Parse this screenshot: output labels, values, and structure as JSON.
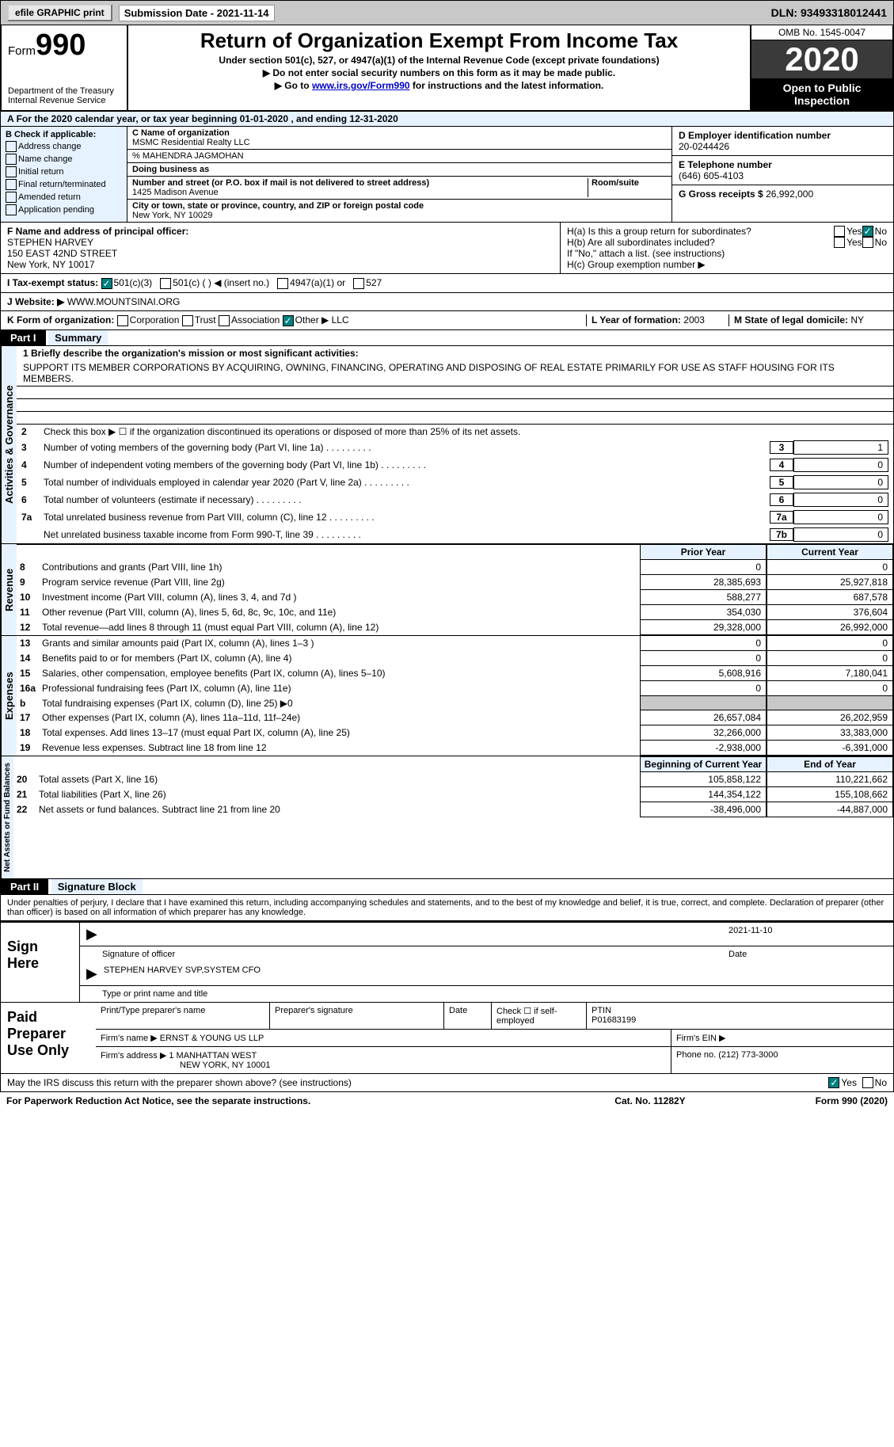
{
  "topbar": {
    "efile": "efile GRAPHIC print",
    "sub_label": "Submission Date - ",
    "sub_date": "2021-11-14",
    "dln": "DLN: 93493318012441"
  },
  "header": {
    "form": "Form",
    "form_num": "990",
    "dept": "Department of the Treasury Internal Revenue Service",
    "title": "Return of Organization Exempt From Income Tax",
    "sub1": "Under section 501(c), 527, or 4947(a)(1) of the Internal Revenue Code (except private foundations)",
    "sub2": "▶ Do not enter social security numbers on this form as it may be made public.",
    "sub3_pre": "▶ Go to ",
    "sub3_link": "www.irs.gov/Form990",
    "sub3_post": " for instructions and the latest information.",
    "omb": "OMB No. 1545-0047",
    "year": "2020",
    "open": "Open to Public Inspection"
  },
  "period": "For the 2020 calendar year, or tax year beginning 01-01-2020   , and ending 12-31-2020",
  "box_b": {
    "title": "B Check if applicable:",
    "items": [
      "Address change",
      "Name change",
      "Initial return",
      "Final return/terminated",
      "Amended return",
      "Application pending"
    ]
  },
  "box_c": {
    "name_lbl": "C Name of organization",
    "name": "MSMC Residential Realty LLC",
    "care": "% MAHENDRA JAGMOHAN",
    "dba_lbl": "Doing business as",
    "addr_lbl": "Number and street (or P.O. box if mail is not delivered to street address)",
    "room_lbl": "Room/suite",
    "addr": "1425 Madison Avenue",
    "city_lbl": "City or town, state or province, country, and ZIP or foreign postal code",
    "city": "New York, NY  10029"
  },
  "box_d": {
    "lbl": "D Employer identification number",
    "val": "20-0244426"
  },
  "box_e": {
    "lbl": "E Telephone number",
    "val": "(646) 605-4103"
  },
  "box_g": {
    "lbl": "G Gross receipts $",
    "val": "26,992,000"
  },
  "box_f": {
    "lbl": "F Name and address of principal officer:",
    "name": "STEPHEN HARVEY",
    "addr1": "150 EAST 42ND STREET",
    "addr2": "New York, NY  10017"
  },
  "box_h": {
    "ha": "H(a)  Is this a group return for subordinates?",
    "hb": "H(b)  Are all subordinates included?",
    "hb_note": "If \"No,\" attach a list. (see instructions)",
    "hc": "H(c)  Group exemption number ▶",
    "yes": "Yes",
    "no": "No"
  },
  "box_i": {
    "lbl": "I  Tax-exempt status:",
    "opts": [
      "501(c)(3)",
      "501(c) (  ) ◀ (insert no.)",
      "4947(a)(1) or",
      "527"
    ]
  },
  "box_j": {
    "lbl": "J  Website: ▶",
    "val": "WWW.MOUNTSINAI.ORG"
  },
  "box_k": {
    "lbl": "K Form of organization:",
    "opts": [
      "Corporation",
      "Trust",
      "Association",
      "Other ▶"
    ],
    "other": "LLC"
  },
  "box_l": {
    "lbl": "L Year of formation:",
    "val": "2003"
  },
  "box_m": {
    "lbl": "M State of legal domicile:",
    "val": "NY"
  },
  "part1": {
    "hdr": "Part I",
    "title": "Summary"
  },
  "mission": {
    "prompt": "1  Briefly describe the organization's mission or most significant activities:",
    "text": "SUPPORT ITS MEMBER CORPORATIONS BY ACQUIRING, OWNING, FINANCING, OPERATING AND DISPOSING OF REAL ESTATE PRIMARILY FOR USE AS STAFF HOUSING FOR ITS MEMBERS."
  },
  "gov_lines": [
    {
      "n": "2",
      "t": "Check this box ▶ ☐ if the organization discontinued its operations or disposed of more than 25% of its net assets."
    },
    {
      "n": "3",
      "t": "Number of voting members of the governing body (Part VI, line 1a)",
      "box": "3",
      "v": "1"
    },
    {
      "n": "4",
      "t": "Number of independent voting members of the governing body (Part VI, line 1b)",
      "box": "4",
      "v": "0"
    },
    {
      "n": "5",
      "t": "Total number of individuals employed in calendar year 2020 (Part V, line 2a)",
      "box": "5",
      "v": "0"
    },
    {
      "n": "6",
      "t": "Total number of volunteers (estimate if necessary)",
      "box": "6",
      "v": "0"
    },
    {
      "n": "7a",
      "t": "Total unrelated business revenue from Part VIII, column (C), line 12",
      "box": "7a",
      "v": "0"
    },
    {
      "n": "",
      "t": "Net unrelated business taxable income from Form 990-T, line 39",
      "box": "7b",
      "v": "0"
    }
  ],
  "rev_hdr": {
    "py": "Prior Year",
    "cy": "Current Year"
  },
  "sections": {
    "gov": "Activities & Governance",
    "rev": "Revenue",
    "exp": "Expenses",
    "net": "Net Assets or Fund Balances"
  },
  "rev_lines": [
    {
      "n": "8",
      "t": "Contributions and grants (Part VIII, line 1h)",
      "py": "0",
      "cy": "0"
    },
    {
      "n": "9",
      "t": "Program service revenue (Part VIII, line 2g)",
      "py": "28,385,693",
      "cy": "25,927,818"
    },
    {
      "n": "10",
      "t": "Investment income (Part VIII, column (A), lines 3, 4, and 7d )",
      "py": "588,277",
      "cy": "687,578"
    },
    {
      "n": "11",
      "t": "Other revenue (Part VIII, column (A), lines 5, 6d, 8c, 9c, 10c, and 11e)",
      "py": "354,030",
      "cy": "376,604"
    },
    {
      "n": "12",
      "t": "Total revenue—add lines 8 through 11 (must equal Part VIII, column (A), line 12)",
      "py": "29,328,000",
      "cy": "26,992,000"
    }
  ],
  "exp_lines": [
    {
      "n": "13",
      "t": "Grants and similar amounts paid (Part IX, column (A), lines 1–3 )",
      "py": "0",
      "cy": "0"
    },
    {
      "n": "14",
      "t": "Benefits paid to or for members (Part IX, column (A), line 4)",
      "py": "0",
      "cy": "0"
    },
    {
      "n": "15",
      "t": "Salaries, other compensation, employee benefits (Part IX, column (A), lines 5–10)",
      "py": "5,608,916",
      "cy": "7,180,041"
    },
    {
      "n": "16a",
      "t": "Professional fundraising fees (Part IX, column (A), line 11e)",
      "py": "0",
      "cy": "0"
    },
    {
      "n": "b",
      "t": "Total fundraising expenses (Part IX, column (D), line 25) ▶0",
      "py": "",
      "cy": "",
      "gray": true
    },
    {
      "n": "17",
      "t": "Other expenses (Part IX, column (A), lines 11a–11d, 11f–24e)",
      "py": "26,657,084",
      "cy": "26,202,959"
    },
    {
      "n": "18",
      "t": "Total expenses. Add lines 13–17 (must equal Part IX, column (A), line 25)",
      "py": "32,266,000",
      "cy": "33,383,000"
    },
    {
      "n": "19",
      "t": "Revenue less expenses. Subtract line 18 from line 12",
      "py": "-2,938,000",
      "cy": "-6,391,000"
    }
  ],
  "net_hdr": {
    "py": "Beginning of Current Year",
    "cy": "End of Year"
  },
  "net_lines": [
    {
      "n": "20",
      "t": "Total assets (Part X, line 16)",
      "py": "105,858,122",
      "cy": "110,221,662"
    },
    {
      "n": "21",
      "t": "Total liabilities (Part X, line 26)",
      "py": "144,354,122",
      "cy": "155,108,662"
    },
    {
      "n": "22",
      "t": "Net assets or fund balances. Subtract line 21 from line 20",
      "py": "-38,496,000",
      "cy": "-44,887,000"
    }
  ],
  "part2": {
    "hdr": "Part II",
    "title": "Signature Block"
  },
  "sig_decl": "Under penalties of perjury, I declare that I have examined this return, including accompanying schedules and statements, and to the best of my knowledge and belief, it is true, correct, and complete. Declaration of preparer (other than officer) is based on all information of which preparer has any knowledge.",
  "sig": {
    "here": "Sign Here",
    "date": "2021-11-10",
    "sig_lbl": "Signature of officer",
    "date_lbl": "Date",
    "name": "STEPHEN HARVEY SVP,SYSTEM CFO",
    "name_lbl": "Type or print name and title"
  },
  "prep": {
    "title": "Paid Preparer Use Only",
    "h1": "Print/Type preparer's name",
    "h2": "Preparer's signature",
    "h3": "Date",
    "h4": "Check ☐ if self-employed",
    "h5": "PTIN",
    "ptin": "P01683199",
    "firm_lbl": "Firm's name   ▶",
    "firm": "ERNST & YOUNG US LLP",
    "ein_lbl": "Firm's EIN ▶",
    "addr_lbl": "Firm's address ▶",
    "addr1": "1 MANHATTAN WEST",
    "addr2": "NEW YORK, NY  10001",
    "phone_lbl": "Phone no.",
    "phone": "(212) 773-3000"
  },
  "footer": {
    "discuss": "May the IRS discuss this return with the preparer shown above? (see instructions)",
    "yes": "Yes",
    "no": "No",
    "pra": "For Paperwork Reduction Act Notice, see the separate instructions.",
    "cat": "Cat. No. 11282Y",
    "form": "Form 990 (2020)"
  }
}
